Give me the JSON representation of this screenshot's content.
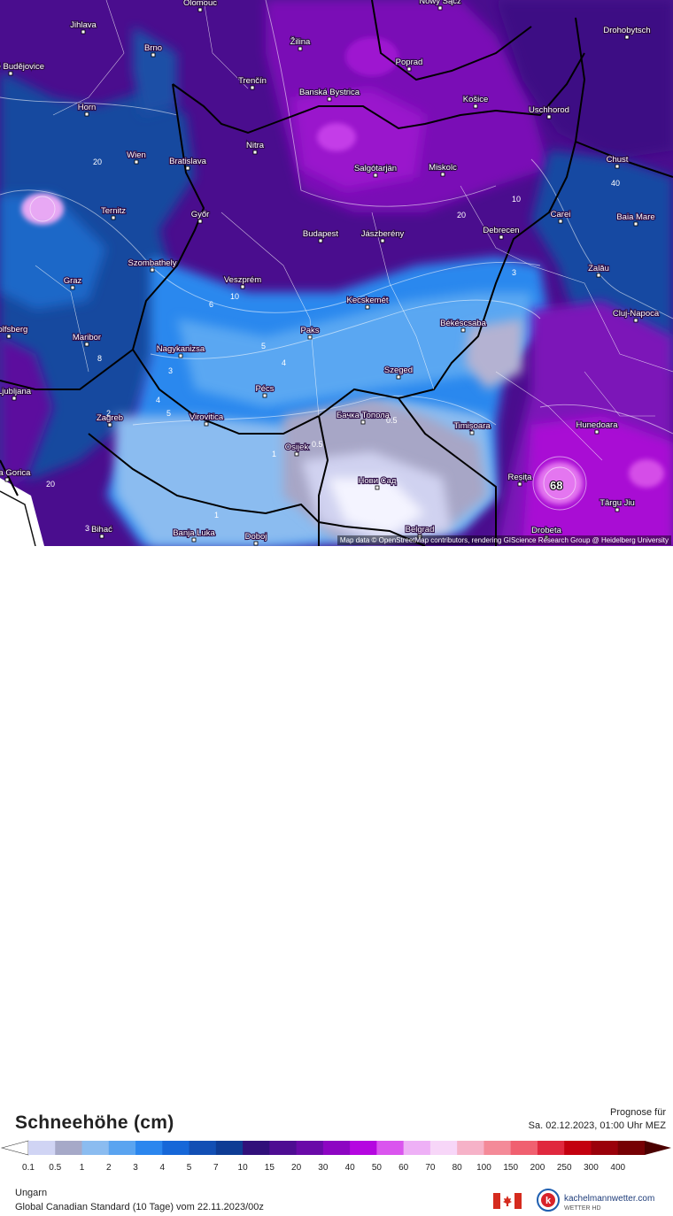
{
  "map": {
    "cities": [
      {
        "name": "Olomouc"
      },
      {
        "name": "Nowy Sącz"
      },
      {
        "name": "Jihlava"
      },
      {
        "name": "Drohobytsch"
      },
      {
        "name": "Brno"
      },
      {
        "name": "Žilina"
      },
      {
        "name": "Poprad"
      },
      {
        "name": "České Budějovice"
      },
      {
        "name": "Trenčín"
      },
      {
        "name": "Banská Bystrica"
      },
      {
        "name": "Horn"
      },
      {
        "name": "Košice"
      },
      {
        "name": "Uschhorod"
      },
      {
        "name": "Nitra"
      },
      {
        "name": "Wien"
      },
      {
        "name": "Bratislava"
      },
      {
        "name": "Salgótarján"
      },
      {
        "name": "Miskolc"
      },
      {
        "name": "Chust"
      },
      {
        "name": "Ternitz"
      },
      {
        "name": "Győr"
      },
      {
        "name": "Carei"
      },
      {
        "name": "Baia Mare"
      },
      {
        "name": "Budapest"
      },
      {
        "name": "Jászberény"
      },
      {
        "name": "Debrecen"
      },
      {
        "name": "Graz"
      },
      {
        "name": "Szombathely"
      },
      {
        "name": "Veszprém"
      },
      {
        "name": "Zalău"
      },
      {
        "name": "Kecskemét"
      },
      {
        "name": "Cluj-Napoca"
      },
      {
        "name": "Wolfsberg"
      },
      {
        "name": "Paks"
      },
      {
        "name": "Békéscsaba"
      },
      {
        "name": "Maribor"
      },
      {
        "name": "Nagykanizsa"
      },
      {
        "name": "Szeged"
      },
      {
        "name": "Pécs"
      },
      {
        "name": "Ljubljana"
      },
      {
        "name": "Zagreb"
      },
      {
        "name": "Virovitica"
      },
      {
        "name": "Бачка Топола"
      },
      {
        "name": "Timișoara"
      },
      {
        "name": "Hunedoara"
      },
      {
        "name": "Osijek"
      },
      {
        "name": "Nova Gorica"
      },
      {
        "name": "Нови Сад"
      },
      {
        "name": "Reșița"
      },
      {
        "name": "Târgu Jiu"
      },
      {
        "name": "Bihać"
      },
      {
        "name": "Banja Luka"
      },
      {
        "name": "Doboj"
      },
      {
        "name": "Belgrad"
      },
      {
        "name": "Drobeta"
      }
    ],
    "isoline_labels": [
      "20",
      "40",
      "10",
      "8",
      "20",
      "10",
      "6",
      "5",
      "4",
      "5",
      "2",
      "3",
      "1",
      "4",
      "3",
      "0.5",
      "1",
      "0.5",
      "3",
      "20"
    ],
    "max_value_label": "68",
    "attribution": "Map data © OpenStreetMap contributors, rendering GIScience Research Group @ Heidelberg University"
  },
  "legend": {
    "title": "Schneehöhe (cm)",
    "forecast_label": "Prognose für",
    "forecast_time": "Sa. 02.12.2023, 01:00 Uhr MEZ",
    "region": "Ungarn",
    "model": "Global Canadian Standard (10 Tage) vom  22.11.2023/00z",
    "ticks": [
      "0.1",
      "0.5",
      "1",
      "2",
      "3",
      "4",
      "5",
      "7",
      "10",
      "15",
      "20",
      "30",
      "40",
      "50",
      "60",
      "70",
      "80",
      "100",
      "150",
      "200",
      "250",
      "300",
      "400"
    ],
    "colors": [
      "#ffffff",
      "#d0d4f4",
      "#a6a9c8",
      "#8bbcf0",
      "#5aa4f0",
      "#2b86ee",
      "#1667d8",
      "#124fb4",
      "#0e3c94",
      "#31107a",
      "#4e0d92",
      "#6a0aa8",
      "#8d05c2",
      "#b506e0",
      "#da55ee",
      "#eeb0f6",
      "#f7d6f8",
      "#f6b2c8",
      "#f48a98",
      "#f06070",
      "#e0283e",
      "#c3000f",
      "#9a000a",
      "#760004",
      "#4b0000"
    ],
    "brand_name": "kachelmannwetter.com",
    "brand_sub": "WETTER HD"
  }
}
